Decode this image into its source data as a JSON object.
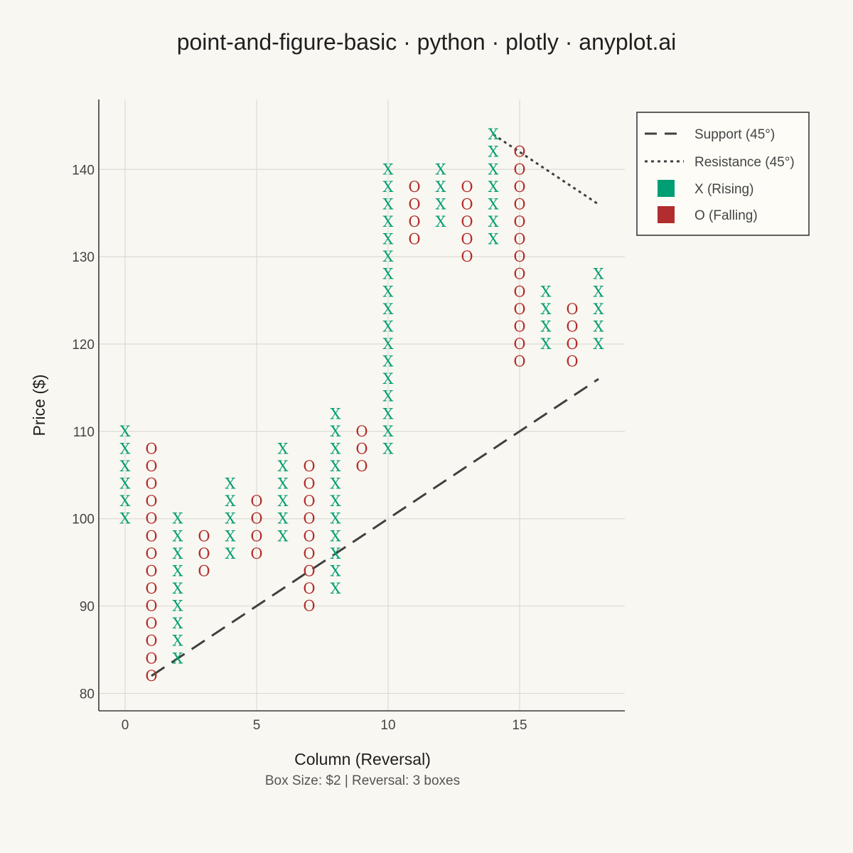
{
  "chart_data": {
    "type": "scatter",
    "title": "point-and-figure-basic · python · plotly · anyplot.ai",
    "xlabel": "Column (Reversal)",
    "ylabel": "Price ($)",
    "subtitle": "Box Size: $2 | Reversal: 3 boxes",
    "xlim": [
      -1,
      19
    ],
    "ylim": [
      78,
      148
    ],
    "x_ticks": [
      0,
      5,
      10,
      15
    ],
    "y_ticks": [
      80,
      90,
      100,
      110,
      120,
      130,
      140
    ],
    "grid": true,
    "legend_position": "top-right",
    "box_size": 2,
    "reversal_boxes": 3,
    "colors": {
      "x": "#009e73",
      "o": "#b22d2d",
      "line": "#404040"
    },
    "columns": [
      {
        "col": 0,
        "type": "X",
        "low": 100,
        "high": 110
      },
      {
        "col": 1,
        "type": "O",
        "low": 82,
        "high": 108
      },
      {
        "col": 2,
        "type": "X",
        "low": 84,
        "high": 100
      },
      {
        "col": 3,
        "type": "O",
        "low": 94,
        "high": 98
      },
      {
        "col": 4,
        "type": "X",
        "low": 96,
        "high": 104
      },
      {
        "col": 5,
        "type": "O",
        "low": 96,
        "high": 102
      },
      {
        "col": 6,
        "type": "X",
        "low": 98,
        "high": 108
      },
      {
        "col": 7,
        "type": "O",
        "low": 90,
        "high": 106
      },
      {
        "col": 8,
        "type": "X",
        "low": 92,
        "high": 112
      },
      {
        "col": 9,
        "type": "O",
        "low": 106,
        "high": 110
      },
      {
        "col": 10,
        "type": "X",
        "low": 108,
        "high": 140
      },
      {
        "col": 11,
        "type": "O",
        "low": 132,
        "high": 138
      },
      {
        "col": 12,
        "type": "X",
        "low": 134,
        "high": 140
      },
      {
        "col": 13,
        "type": "O",
        "low": 130,
        "high": 138
      },
      {
        "col": 14,
        "type": "X",
        "low": 132,
        "high": 144
      },
      {
        "col": 15,
        "type": "O",
        "low": 118,
        "high": 142
      },
      {
        "col": 16,
        "type": "X",
        "low": 120,
        "high": 126
      },
      {
        "col": 17,
        "type": "O",
        "low": 118,
        "high": 124
      },
      {
        "col": 18,
        "type": "X",
        "low": 120,
        "high": 128
      }
    ],
    "support_line": {
      "name": "Support (45°)",
      "x": [
        1,
        18
      ],
      "y": [
        82,
        116
      ]
    },
    "resistance_line": {
      "name": "Resistance (45°)",
      "x": [
        14,
        18
      ],
      "y": [
        144,
        136
      ]
    },
    "legend": [
      {
        "label": "Support (45°)",
        "kind": "dash"
      },
      {
        "label": "Resistance (45°)",
        "kind": "dot"
      },
      {
        "label": "X (Rising)",
        "kind": "x"
      },
      {
        "label": "O (Falling)",
        "kind": "o"
      }
    ]
  }
}
